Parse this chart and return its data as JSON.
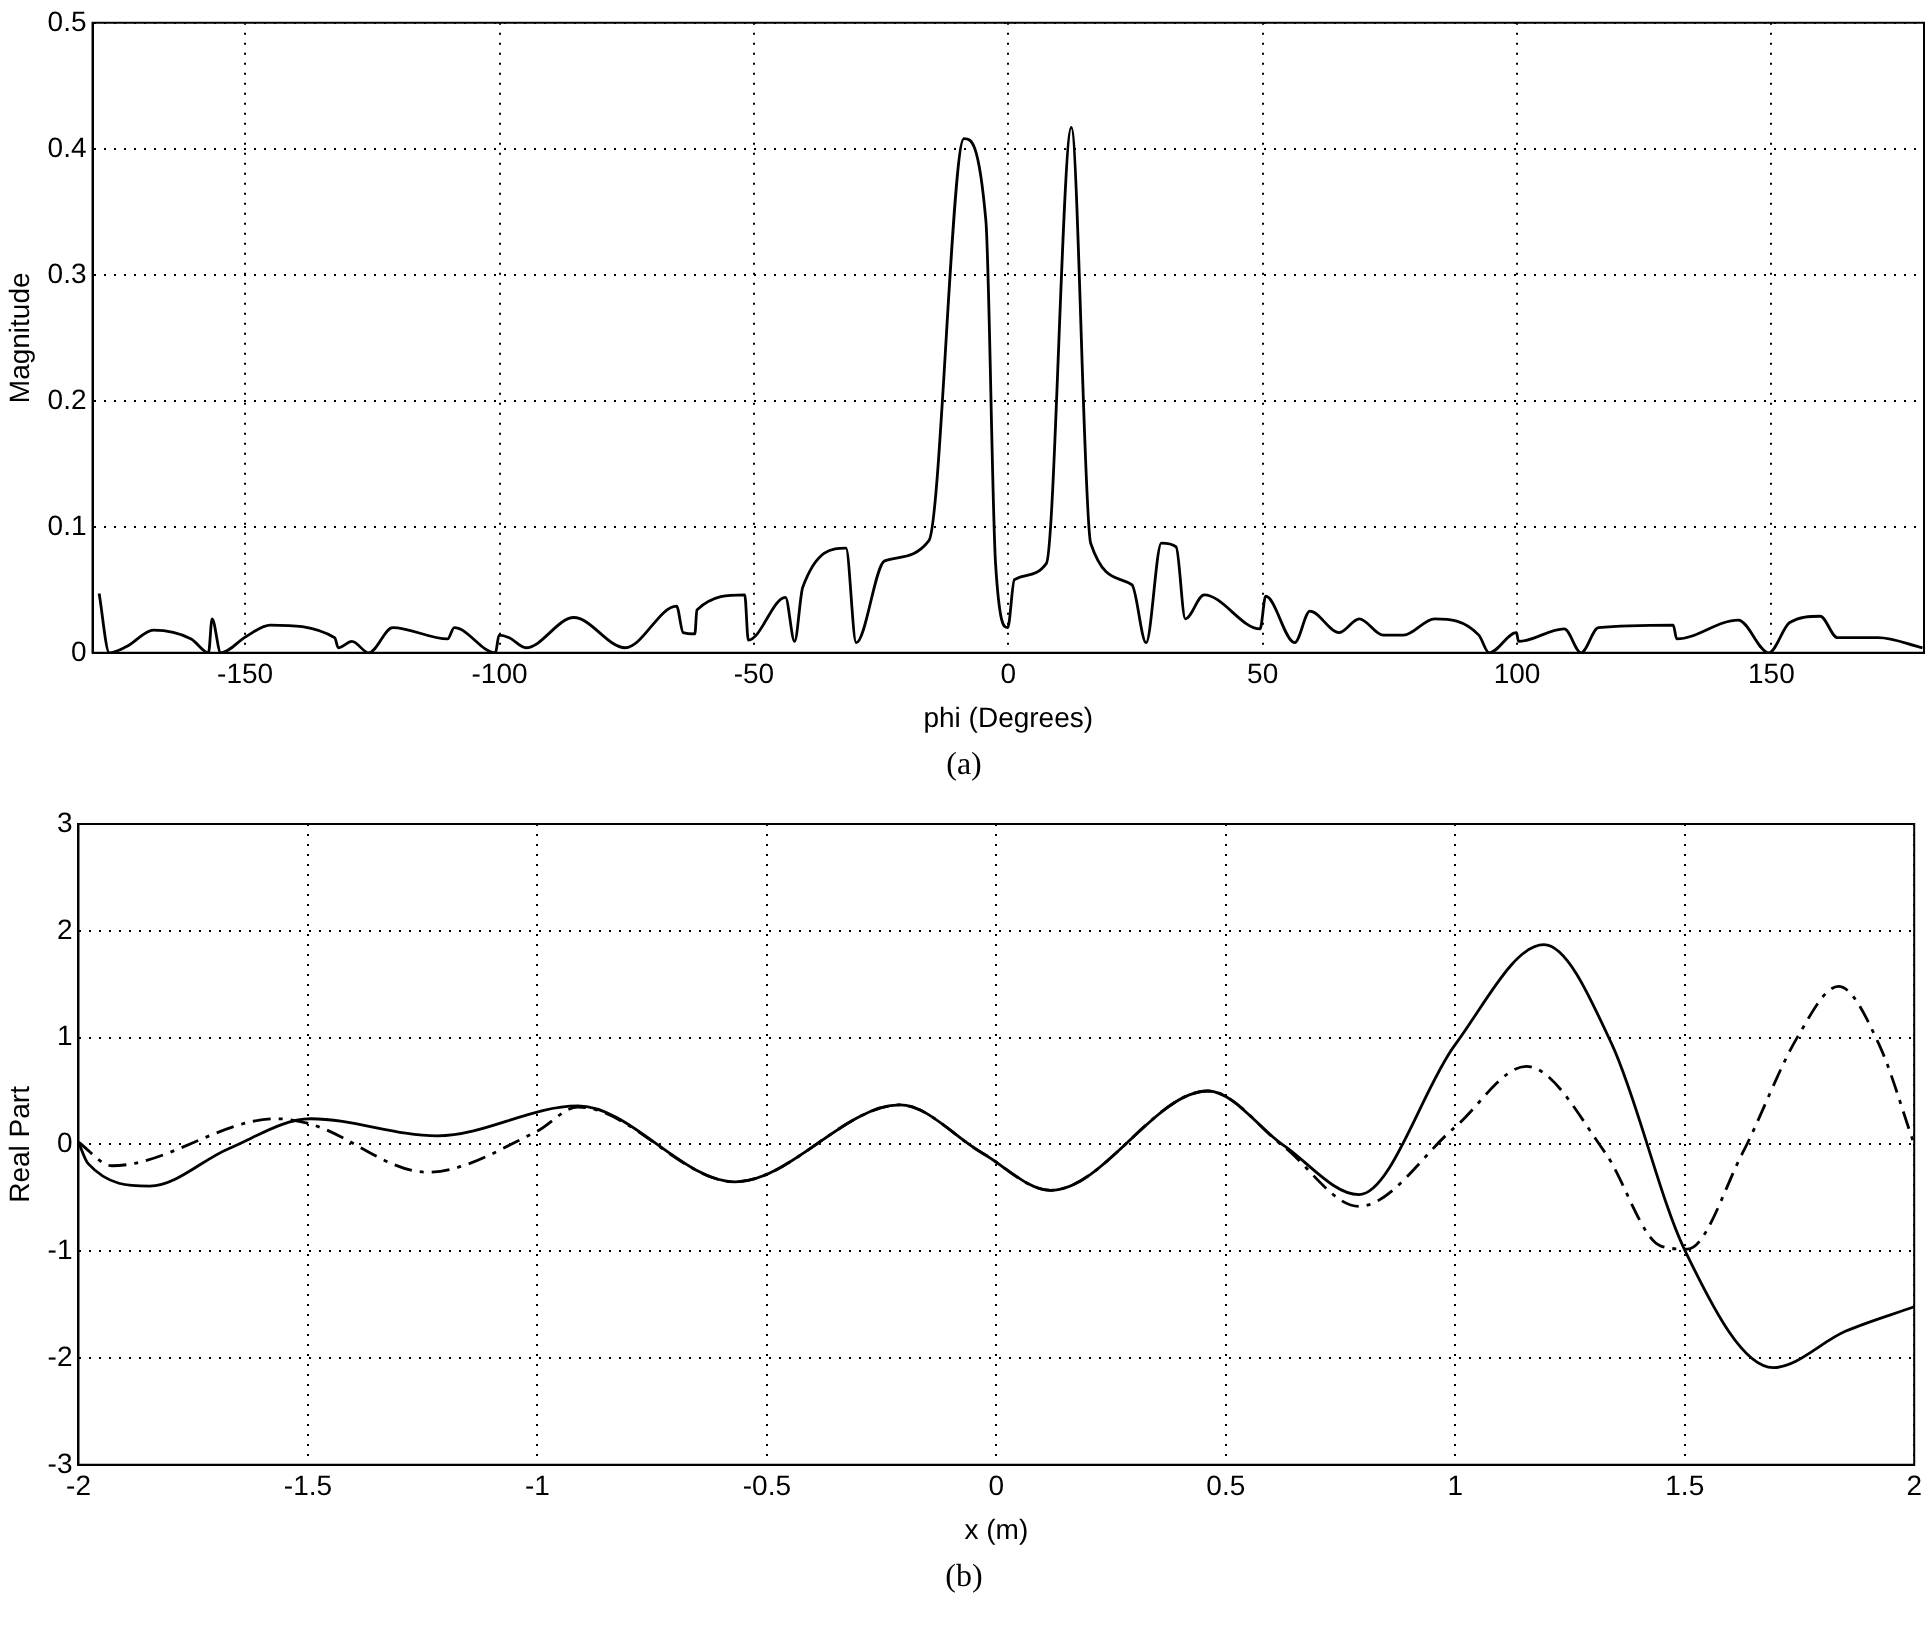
{
  "chart_data": [
    {
      "type": "line",
      "xlabel": "phi (Degrees)",
      "ylabel": "Magnitude",
      "annotations": [
        "(a)"
      ],
      "xlim": [
        -180,
        180
      ],
      "xticks": [
        -150,
        -100,
        -50,
        0,
        50,
        100,
        150
      ],
      "ylim": [
        0,
        0.5
      ],
      "yticks": [
        0,
        0.1,
        0.2,
        0.3,
        0.4,
        0.5
      ],
      "grid": true,
      "legend": false,
      "marker": "none",
      "line_style": "solid",
      "series": [
        {
          "color": "#000000",
          "x": [
            -178.7,
            -176.7,
            -173.3,
            -168,
            -160.6,
            -157.2,
            -156.5,
            -154.8,
            -149.8,
            -145.1,
            -132.4,
            -131.7,
            -129,
            -125.7,
            -121,
            -110.2,
            -108.9,
            -100.8,
            -100.1,
            -98.1,
            -94.8,
            -85.4,
            -75.3,
            -65.2,
            -63.9,
            -61.6,
            -61.2,
            -51.8,
            -51.1,
            -43.8,
            -42,
            -40.4,
            -31.9,
            -29.9,
            -24.3,
            -15.6,
            -8.7,
            -4.4,
            -2.5,
            -0.1,
            1.2,
            7.5,
            12.4,
            16.2,
            24.3,
            27.1,
            30.1,
            33,
            34.8,
            38.5,
            49.5,
            50.6,
            56.3,
            59.3,
            65,
            69,
            73.7,
            77.7,
            83.8,
            92.5,
            94.5,
            99.9,
            100.3,
            109.3,
            112.6,
            116,
            130.7,
            131.4,
            143.5,
            149.5,
            153.6,
            159.6,
            163,
            171,
            179.7
          ],
          "values": [
            0.047,
            0,
            0.005,
            0.018,
            0.011,
            0,
            0.027,
            0,
            0.013,
            0.022,
            0.012,
            0.004,
            0.009,
            0,
            0.02,
            0.011,
            0.02,
            0,
            0.014,
            0.012,
            0.004,
            0.028,
            0.004,
            0.037,
            0.016,
            0.015,
            0.034,
            0.046,
            0.01,
            0.044,
            0.009,
            0.052,
            0.083,
            0.008,
            0.073,
            0.089,
            0.408,
            0.343,
            0.071,
            0.02,
            0.058,
            0.071,
            0.417,
            0.087,
            0.054,
            0.008,
            0.087,
            0.084,
            0.027,
            0.046,
            0.019,
            0.045,
            0.008,
            0.033,
            0.016,
            0.027,
            0.014,
            0.014,
            0.027,
            0.014,
            0,
            0.016,
            0.009,
            0.019,
            0,
            0.02,
            0.022,
            0.011,
            0.026,
            0,
            0.024,
            0.029,
            0.012,
            0.012,
            0.004
          ]
        }
      ]
    },
    {
      "type": "line",
      "xlabel": "x (m)",
      "ylabel": "Real Part",
      "annotations": [
        "(b)"
      ],
      "xlim": [
        -2,
        2
      ],
      "xticks": [
        -2,
        -1.5,
        -1,
        -0.5,
        0,
        0.5,
        1,
        1.5,
        2
      ],
      "ylim": [
        -3,
        3
      ],
      "yticks": [
        -3,
        -2,
        -1,
        0,
        1,
        2,
        3
      ],
      "grid": true,
      "legend": false,
      "marker": "none",
      "series": [
        {
          "color": "#000000",
          "line_style": "solid",
          "x": [
            -2,
            -1.979,
            -1.845,
            -1.673,
            -1.494,
            -1.218,
            -0.912,
            -0.569,
            -0.21,
            -0.031,
            0.118,
            0.461,
            0.626,
            0.79,
            0.999,
            1.193,
            1.342,
            1.499,
            1.693,
            1.85,
            2
          ],
          "values": [
            0.02,
            -0.18,
            -0.39,
            -0.04,
            0.24,
            0.08,
            0.36,
            -0.35,
            0.37,
            -0.08,
            -0.43,
            0.5,
            -0.01,
            -0.47,
            0.93,
            1.87,
            0.93,
            -0.98,
            -2.09,
            -1.75,
            -1.52
          ]
        },
        {
          "color": "#000000",
          "line_style": "dashed",
          "x": [
            -2,
            -1.927,
            -1.569,
            -1.494,
            -1.24,
            -1.002,
            -0.912,
            -0.569,
            -0.21,
            -0.031,
            0.118,
            0.461,
            0.626,
            0.79,
            0.999,
            1.155,
            1.327,
            1.447,
            1.506,
            1.626,
            1.745,
            1.835,
            1.924,
            2
          ],
          "values": [
            0.02,
            -0.2,
            0.24,
            0.19,
            -0.26,
            0.12,
            0.35,
            -0.35,
            0.37,
            -0.08,
            -0.43,
            0.5,
            -0.02,
            -0.58,
            0.16,
            0.73,
            -0.08,
            -0.95,
            -0.98,
            -0.08,
            1.0,
            1.48,
            0.93,
            0
          ]
        }
      ]
    }
  ]
}
